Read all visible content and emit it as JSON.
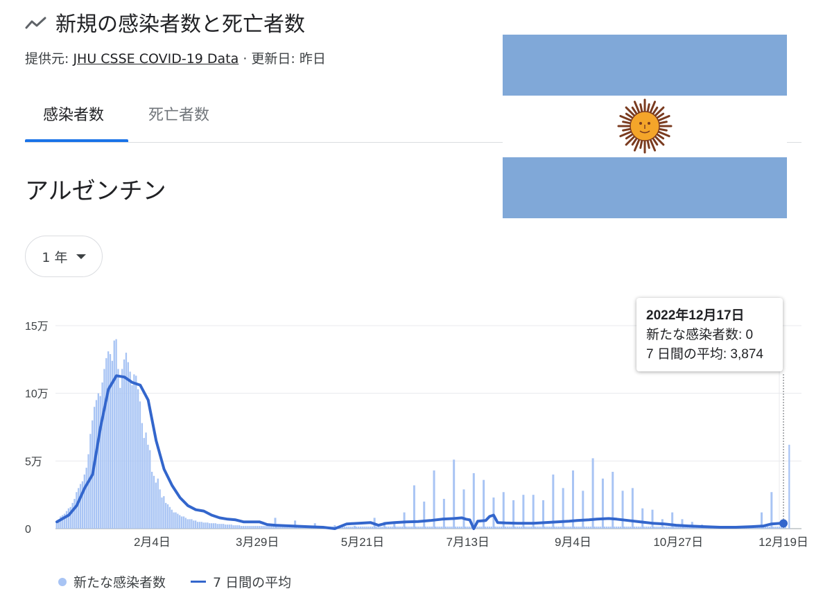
{
  "header": {
    "icon": "trending-line-icon",
    "title": "新規の感染者数と死亡者数",
    "source_prefix": "提供元:",
    "source_link": "JHU CSSE COVID-19 Data",
    "updated": "· 更新日: 昨日"
  },
  "tabs": [
    {
      "label": "感染者数",
      "selected": true
    },
    {
      "label": "死亡者数",
      "selected": false
    }
  ],
  "country": "アルゼンチン",
  "range_selector": {
    "selected": "1 年"
  },
  "flag": {
    "name": "argentina-flag",
    "colors": {
      "blue": "#80a8d8",
      "white": "#ffffff",
      "sun": "#f4a52a",
      "sun_rays": "#7a3b1f"
    }
  },
  "colors": {
    "bars": "#a8c4f4",
    "line": "#3366cc",
    "accent": "#1a73e8"
  },
  "tooltip": {
    "date": "2022年12月17日",
    "new_cases": "新たな感染者数: 0",
    "avg7": "7 日間の平均: 3,874"
  },
  "legend": {
    "bars_label": "新たな感染者数",
    "line_label": "7 日間の平均"
  },
  "chart_data": {
    "type": "bar",
    "ylim": [
      0,
      150000
    ],
    "y_ticks": [
      {
        "label": "0",
        "value": 0
      },
      {
        "label": "5万",
        "value": 50000
      },
      {
        "label": "10万",
        "value": 100000
      },
      {
        "label": "15万",
        "value": 150000
      }
    ],
    "x_ticks": [
      {
        "label": "2月4日",
        "day": 48
      },
      {
        "label": "3月29日",
        "day": 101
      },
      {
        "label": "5月21日",
        "day": 154
      },
      {
        "label": "7月13日",
        "day": 207
      },
      {
        "label": "9月4日",
        "day": 260
      },
      {
        "label": "10月27日",
        "day": 313
      },
      {
        "label": "12月19日",
        "day": 366
      }
    ],
    "x_start": "2021年12月18日",
    "x_end": "2022年12月19日",
    "grid": true,
    "series": [
      {
        "name": "新たな感染者数",
        "type": "bar",
        "start": "2021年12月18日",
        "values": [
          4000,
          6000,
          9000,
          10000,
          11000,
          13000,
          15000,
          16000,
          19000,
          22000,
          27000,
          30000,
          33000,
          35000,
          40000,
          45000,
          55000,
          70000,
          80000,
          90000,
          95000,
          100000,
          98000,
          108000,
          118000,
          126000,
          131000,
          129000,
          124000,
          139000,
          140000,
          118000,
          104000,
          118000,
          125000,
          130000,
          123000,
          116000,
          106000,
          114000,
          113000,
          103000,
          94000,
          78000,
          67000,
          71000,
          62000,
          58000,
          42000,
          39000,
          34000,
          37000,
          29000,
          23000,
          24000,
          19000,
          18000,
          16000,
          14000,
          12000,
          12000,
          11000,
          10000,
          9000,
          9000,
          8000,
          7000,
          7000,
          7000,
          6000,
          6000,
          5000,
          5000,
          5000,
          4500,
          4500,
          4500,
          4000,
          4000,
          4000,
          4000,
          3500,
          3500,
          3500,
          3500,
          3000,
          3000,
          3000,
          3000,
          2500,
          2500,
          2500,
          2500,
          2000,
          2000,
          2000,
          2000,
          2000,
          2000,
          2000,
          2000,
          2000,
          2000,
          2000,
          2000,
          2000,
          2000,
          2000,
          2000,
          2000,
          1500,
          1500,
          1500,
          1500,
          1500,
          1500,
          1500,
          1500,
          1500,
          1500,
          1500,
          1500,
          1500,
          1500,
          1500,
          1500,
          1500,
          1500,
          1500,
          1500,
          1500,
          1500,
          1500,
          1500,
          1500,
          1500,
          1500,
          1500,
          1500,
          1500,
          1500,
          1500,
          1500,
          1500,
          1500,
          1500,
          1500,
          1500,
          1500,
          1500,
          1500,
          1500,
          1500,
          1500,
          1500,
          1500,
          1500,
          1500,
          1500,
          1500,
          1500,
          1500,
          1500,
          1500,
          1500,
          1500,
          1500,
          1500,
          1500,
          1500,
          1500,
          1500,
          1500,
          1500,
          1500,
          1500,
          1500,
          1500,
          1500,
          1500,
          1500,
          1500,
          1500,
          1500,
          1500,
          1500,
          1500,
          1500,
          1500,
          1500,
          1500,
          1500,
          1500,
          1500,
          1500,
          1500,
          1500,
          1500,
          1500,
          1500,
          1500,
          1500,
          1500,
          1500,
          1500,
          1500,
          1500,
          1500,
          1500,
          1500,
          1500,
          1500,
          1500,
          1500,
          1500,
          1500,
          1500,
          1500,
          1500,
          1500,
          1500,
          1500,
          1500,
          1500,
          1500,
          1500,
          1500,
          1500,
          1500,
          1500,
          1500,
          1500,
          1500,
          1500,
          1500,
          1500,
          1500,
          1500,
          1500,
          1500,
          1500,
          1500,
          1500,
          1500,
          1500,
          1500,
          1500,
          1500,
          1500,
          1500,
          1500,
          1500,
          1500,
          1500,
          1500,
          1500,
          1500,
          1500,
          1500,
          1500,
          1500,
          1500,
          1500,
          1500,
          1500,
          1500,
          1500,
          1500,
          1500,
          1500,
          1500,
          1500,
          1500,
          1500,
          1500,
          1500,
          1500,
          1500,
          1500,
          1500,
          1500,
          1500,
          1500,
          1500,
          1500,
          1500,
          1500,
          1500,
          1500,
          1500,
          1500,
          1500,
          1500,
          1500,
          1500,
          1500,
          1500,
          1500,
          1500,
          1500,
          1500,
          1500,
          1500,
          1500,
          1500,
          1500,
          1500,
          1500,
          1500,
          1500,
          1500,
          1500,
          1500,
          1500,
          1500,
          1500,
          1500,
          1500,
          1500,
          1500,
          1500,
          1500,
          1500,
          1500,
          1500,
          1500,
          1500,
          1500,
          1500,
          1500,
          1500,
          1500,
          1500,
          1500,
          1500,
          1500,
          1500,
          1500,
          1500,
          1500,
          1500,
          1500,
          1500,
          1500,
          1500,
          1500,
          1500,
          1500,
          1500,
          1500,
          1500,
          1500,
          1500,
          1500,
          1500,
          1500,
          1500,
          1500,
          1500,
          1500,
          1500,
          1500,
          1500,
          1500,
          1500,
          1500,
          1500,
          1500,
          0,
          62000
        ],
        "spikes": [
          [
            110,
            8000
          ],
          [
            120,
            6000
          ],
          [
            130,
            4000
          ],
          [
            140,
            2500
          ],
          [
            150,
            2000
          ],
          [
            160,
            8000
          ],
          [
            165,
            5000
          ],
          [
            170,
            5000
          ],
          [
            175,
            12000
          ],
          [
            180,
            32000
          ],
          [
            185,
            20000
          ],
          [
            190,
            43000
          ],
          [
            195,
            22000
          ],
          [
            200,
            51000
          ],
          [
            205,
            29000
          ],
          [
            210,
            41000
          ],
          [
            215,
            36000
          ],
          [
            220,
            23000
          ],
          [
            225,
            27000
          ],
          [
            230,
            21000
          ],
          [
            235,
            25000
          ],
          [
            240,
            25000
          ],
          [
            245,
            21000
          ],
          [
            250,
            40000
          ],
          [
            255,
            30000
          ],
          [
            260,
            43000
          ],
          [
            265,
            28000
          ],
          [
            270,
            52000
          ],
          [
            275,
            37000
          ],
          [
            280,
            42000
          ],
          [
            285,
            28000
          ],
          [
            290,
            30000
          ],
          [
            295,
            15000
          ],
          [
            300,
            14000
          ],
          [
            305,
            7000
          ],
          [
            310,
            12000
          ],
          [
            315,
            7000
          ],
          [
            320,
            5000
          ],
          [
            325,
            3000
          ],
          [
            330,
            2000
          ],
          [
            335,
            2000
          ],
          [
            340,
            1500
          ],
          [
            345,
            1500
          ],
          [
            350,
            1500
          ],
          [
            355,
            12000
          ],
          [
            360,
            27000
          ]
        ]
      },
      {
        "name": "7 日間の平均",
        "type": "line",
        "points": [
          [
            0,
            5000
          ],
          [
            6,
            10000
          ],
          [
            10,
            17000
          ],
          [
            14,
            30000
          ],
          [
            18,
            40000
          ],
          [
            22,
            75000
          ],
          [
            26,
            103000
          ],
          [
            30,
            113000
          ],
          [
            34,
            112000
          ],
          [
            38,
            108000
          ],
          [
            42,
            106000
          ],
          [
            46,
            95000
          ],
          [
            50,
            65000
          ],
          [
            54,
            44000
          ],
          [
            58,
            32000
          ],
          [
            62,
            23000
          ],
          [
            66,
            17000
          ],
          [
            70,
            14000
          ],
          [
            74,
            13000
          ],
          [
            78,
            10000
          ],
          [
            82,
            8000
          ],
          [
            86,
            7000
          ],
          [
            90,
            6500
          ],
          [
            94,
            5000
          ],
          [
            98,
            5000
          ],
          [
            102,
            5000
          ],
          [
            106,
            3000
          ],
          [
            110,
            2500
          ],
          [
            118,
            2000
          ],
          [
            126,
            1500
          ],
          [
            134,
            1000
          ],
          [
            140,
            0
          ],
          [
            146,
            3500
          ],
          [
            152,
            4000
          ],
          [
            158,
            4500
          ],
          [
            162,
            2500
          ],
          [
            166,
            4000
          ],
          [
            170,
            4500
          ],
          [
            176,
            5000
          ],
          [
            182,
            5200
          ],
          [
            188,
            6000
          ],
          [
            194,
            7000
          ],
          [
            200,
            7500
          ],
          [
            204,
            8000
          ],
          [
            206,
            7000
          ],
          [
            208,
            6500
          ],
          [
            210,
            0
          ],
          [
            212,
            5500
          ],
          [
            216,
            6000
          ],
          [
            218,
            9000
          ],
          [
            220,
            10000
          ],
          [
            222,
            4500
          ],
          [
            226,
            4200
          ],
          [
            232,
            4000
          ],
          [
            240,
            4000
          ],
          [
            246,
            4500
          ],
          [
            252,
            5000
          ],
          [
            258,
            5500
          ],
          [
            262,
            6000
          ],
          [
            268,
            6500
          ],
          [
            272,
            7000
          ],
          [
            278,
            7500
          ],
          [
            282,
            7000
          ],
          [
            288,
            6000
          ],
          [
            294,
            5000
          ],
          [
            300,
            4000
          ],
          [
            306,
            3500
          ],
          [
            312,
            2500
          ],
          [
            318,
            2000
          ],
          [
            326,
            1500
          ],
          [
            334,
            1000
          ],
          [
            342,
            1000
          ],
          [
            350,
            1500
          ],
          [
            356,
            2000
          ],
          [
            360,
            3500
          ],
          [
            364,
            3900
          ],
          [
            366,
            3874
          ]
        ]
      }
    ]
  }
}
